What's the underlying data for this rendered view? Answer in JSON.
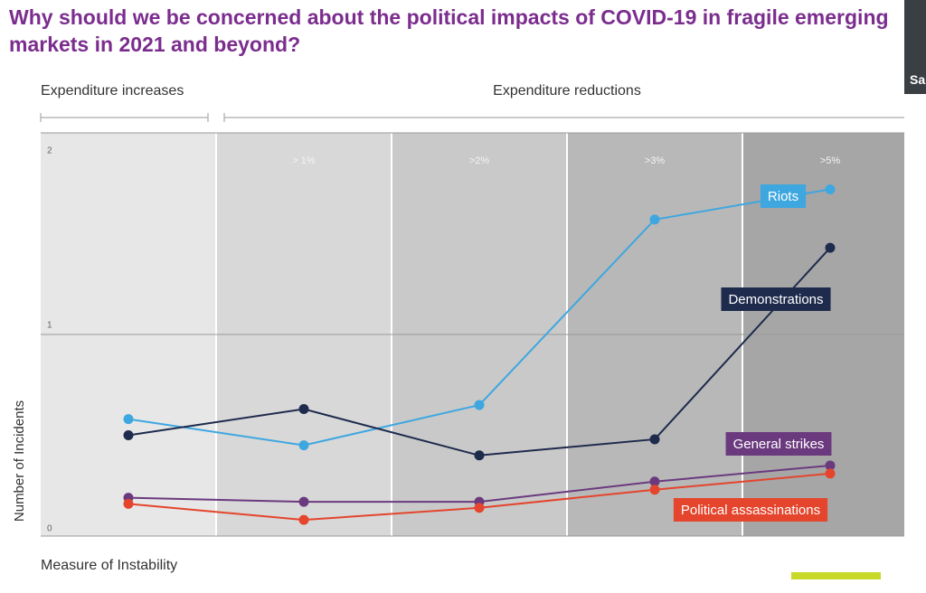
{
  "chart_data": {
    "type": "line",
    "title": "Why should we be concerned about the political impacts of COVID-19 in fragile emerging markets in 2021 and beyond?",
    "annotations": [
      "Expenditure increases",
      "Expenditure reductions"
    ],
    "x_label": "Measure of Instability",
    "y_label": "Number of Incidents",
    "categories": [
      null,
      "> 1%",
      ">2%",
      ">3%",
      ">5%"
    ],
    "ylim": [
      0,
      2
    ],
    "yticks": [
      0,
      1,
      2
    ],
    "grid": true,
    "series": [
      {
        "name": "Riots",
        "color": "#3ea7e0",
        "values": [
          0.58,
          0.45,
          0.65,
          1.57,
          1.72
        ]
      },
      {
        "name": "Demonstrations",
        "color": "#1e2b4d",
        "values": [
          0.5,
          0.63,
          0.4,
          0.48,
          1.43
        ]
      },
      {
        "name": "General strikes",
        "color": "#6b3a7e",
        "values": [
          0.19,
          0.17,
          0.17,
          0.27,
          0.35
        ]
      },
      {
        "name": "Political assassinations",
        "color": "#e4452c",
        "values": [
          0.16,
          0.08,
          0.14,
          0.23,
          0.31
        ]
      }
    ]
  },
  "webcam_label": "Sa"
}
